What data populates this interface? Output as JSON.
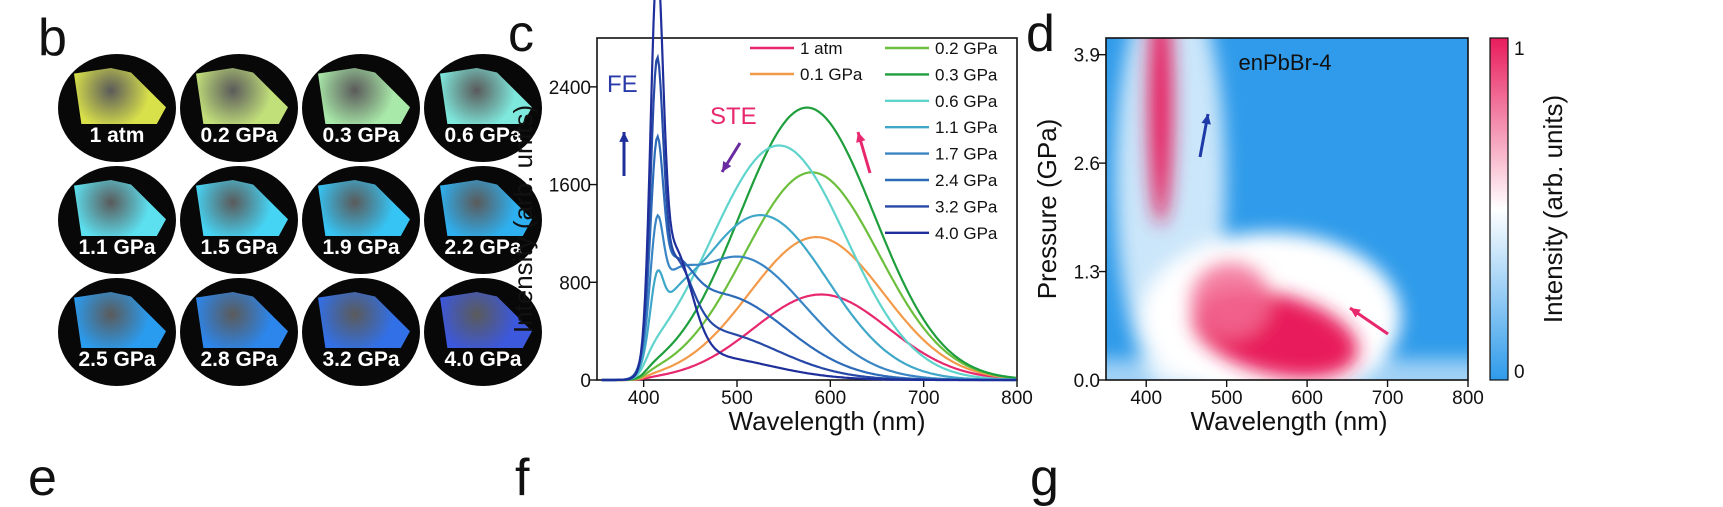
{
  "panels": {
    "b": "b",
    "c": "c",
    "d": "d",
    "e": "e",
    "f": "f",
    "g": "g"
  },
  "photos": [
    {
      "label": "1 atm",
      "color": "#d8e04a"
    },
    {
      "label": "0.2 GPa",
      "color": "#c2e07a"
    },
    {
      "label": "0.3 GPa",
      "color": "#a8e8a8"
    },
    {
      "label": "0.6 GPa",
      "color": "#7ee8dc"
    },
    {
      "label": "1.1 GPa",
      "color": "#5ce0f0"
    },
    {
      "label": "1.5 GPa",
      "color": "#46d4f4"
    },
    {
      "label": "1.9 GPa",
      "color": "#36c4f4"
    },
    {
      "label": "2.2 GPa",
      "color": "#2eb0f0"
    },
    {
      "label": "2.5 GPa",
      "color": "#2a9cf0"
    },
    {
      "label": "2.8 GPa",
      "color": "#2c86ec"
    },
    {
      "label": "3.2 GPa",
      "color": "#3270e8"
    },
    {
      "label": "4.0 GPa",
      "color": "#3c58dc"
    }
  ],
  "chart_data": [
    {
      "type": "line",
      "xlabel": "Wavelength (nm)",
      "ylabel": "Intensity (arb. units)",
      "xlim": [
        350,
        800
      ],
      "ylim": [
        0,
        2800
      ],
      "xticks": [
        400,
        500,
        600,
        700,
        800
      ],
      "yticks": [
        0,
        800,
        1600,
        2400
      ],
      "legend_placement": "top-right",
      "annotations": {
        "fe": "FE",
        "ste": "STE"
      },
      "series": [
        {
          "name": "1 atm",
          "color": "#e8286e",
          "fe_peak": 0,
          "ste_peak": 700,
          "ste_center": 590
        },
        {
          "name": "0.1 GPa",
          "color": "#f39a4a",
          "fe_peak": 0,
          "ste_peak": 1170,
          "ste_center": 585
        },
        {
          "name": "0.2 GPa",
          "color": "#6cbf3c",
          "fe_peak": 0,
          "ste_peak": 1700,
          "ste_center": 580
        },
        {
          "name": "0.3 GPa",
          "color": "#1e9e3c",
          "fe_peak": 0,
          "ste_peak": 2230,
          "ste_center": 575
        },
        {
          "name": "0.6 GPa",
          "color": "#5fd4cc",
          "fe_peak": 0,
          "ste_peak": 1920,
          "ste_center": 545
        },
        {
          "name": "1.1 GPa",
          "color": "#3fa8c8",
          "fe_peak": 400,
          "ste_peak": 1350,
          "ste_center": 525
        },
        {
          "name": "1.7 GPa",
          "color": "#3a86c4",
          "fe_peak": 700,
          "ste_peak": 1010,
          "ste_center": 500
        },
        {
          "name": "2.4 GPa",
          "color": "#2d6ab8",
          "fe_peak": 1250,
          "ste_peak": 700,
          "ste_center": 480
        },
        {
          "name": "3.2 GPa",
          "color": "#2648a6",
          "fe_peak": 1900,
          "ste_peak": 400,
          "ste_center": 470
        },
        {
          "name": "4.0 GPa",
          "color": "#1e2e9a",
          "fe_peak": 2620,
          "ste_peak": 200,
          "ste_center": 460
        }
      ]
    },
    {
      "type": "heatmap",
      "title": "enPbBr-4",
      "xlabel": "Wavelength (nm)",
      "ylabel": "Pressure (GPa)",
      "xlim": [
        350,
        800
      ],
      "ylim": [
        0,
        4.1
      ],
      "xticks": [
        400,
        500,
        600,
        700,
        800
      ],
      "yticks": [
        0.0,
        1.3,
        2.6,
        3.9
      ],
      "colorbar": {
        "label": "Intensity (arb. units)",
        "ticks": [
          "0",
          "1"
        ],
        "low_color": "#2f9bea",
        "mid_color": "#ffffff",
        "high_color": "#e81c5c"
      }
    }
  ]
}
